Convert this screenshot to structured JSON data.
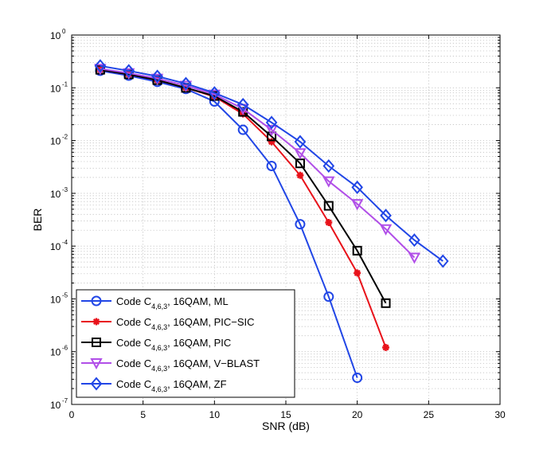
{
  "chart_data": {
    "type": "line",
    "title": "",
    "xlabel": "SNR (dB)",
    "ylabel": "BER",
    "xlim": [
      0,
      30
    ],
    "ylim": [
      1e-07,
      1
    ],
    "yscale": "log",
    "grid": true,
    "legend_position": "bottom-left",
    "x_ticks": [
      0,
      5,
      10,
      15,
      20,
      25,
      30
    ],
    "y_ticks": [
      {
        "base": "10",
        "exp": "0",
        "value": 1
      },
      {
        "base": "10",
        "exp": "-1",
        "value": 0.1
      },
      {
        "base": "10",
        "exp": "-2",
        "value": 0.01
      },
      {
        "base": "10",
        "exp": "-3",
        "value": 0.001
      },
      {
        "base": "10",
        "exp": "-4",
        "value": 0.0001
      },
      {
        "base": "10",
        "exp": "-5",
        "value": 1e-05
      },
      {
        "base": "10",
        "exp": "-6",
        "value": 1e-06
      },
      {
        "base": "10",
        "exp": "-7",
        "value": 1e-07
      }
    ],
    "series": [
      {
        "name": "Code C4,6,3, 16QAM, ML",
        "label_main": "Code C",
        "label_sub": "4,6,3",
        "label_rest": ", 16QAM, ML",
        "color": "#2146e6",
        "marker": "circle",
        "x": [
          2,
          4,
          6,
          8,
          10,
          12,
          14,
          16,
          18,
          20
        ],
        "y": [
          0.21,
          0.17,
          0.13,
          0.095,
          0.055,
          0.016,
          0.0033,
          0.00026,
          1.1e-05,
          3.2e-07
        ]
      },
      {
        "name": "Code C4,6,3, 16QAM, PIC-SIC",
        "label_main": "Code C",
        "label_sub": "4,6,3",
        "label_rest": ", 16QAM, PIC−SIC",
        "color": "#e8121a",
        "marker": "star",
        "x": [
          2,
          4,
          6,
          8,
          10,
          12,
          14,
          16,
          18,
          20,
          22
        ],
        "y": [
          0.22,
          0.18,
          0.14,
          0.1,
          0.068,
          0.032,
          0.0095,
          0.0022,
          0.00028,
          3.1e-05,
          1.2e-06
        ]
      },
      {
        "name": "Code C4,6,3, 16QAM, PIC",
        "label_main": "Code C",
        "label_sub": "4,6,3",
        "label_rest": ", 16QAM, PIC",
        "color": "#000000",
        "marker": "square",
        "x": [
          2,
          4,
          6,
          8,
          10,
          12,
          14,
          16,
          18,
          20,
          22
        ],
        "y": [
          0.22,
          0.18,
          0.14,
          0.1,
          0.07,
          0.035,
          0.012,
          0.0037,
          0.00058,
          8.2e-05,
          8.3e-06
        ]
      },
      {
        "name": "Code C4,6,3, 16QAM, V-BLAST",
        "label_main": "Code C",
        "label_sub": "4,6,3",
        "label_rest": ", 16QAM, V−BLAST",
        "color": "#b14fe8",
        "marker": "triangle-down",
        "x": [
          2,
          4,
          6,
          8,
          10,
          12,
          14,
          16,
          18,
          20,
          22,
          24
        ],
        "y": [
          0.23,
          0.19,
          0.15,
          0.11,
          0.075,
          0.04,
          0.016,
          0.0058,
          0.0017,
          0.00063,
          0.00021,
          6.1e-05
        ]
      },
      {
        "name": "Code C4,6,3, 16QAM, ZF",
        "label_main": "Code C",
        "label_sub": "4,6,3",
        "label_rest": ", 16QAM, ZF",
        "color": "#2146e6",
        "marker": "diamond",
        "x": [
          2,
          4,
          6,
          8,
          10,
          12,
          14,
          16,
          18,
          20,
          22,
          24,
          26
        ],
        "y": [
          0.26,
          0.21,
          0.165,
          0.12,
          0.08,
          0.048,
          0.022,
          0.0095,
          0.0033,
          0.0013,
          0.00038,
          0.00013,
          5.2e-05
        ]
      }
    ]
  }
}
